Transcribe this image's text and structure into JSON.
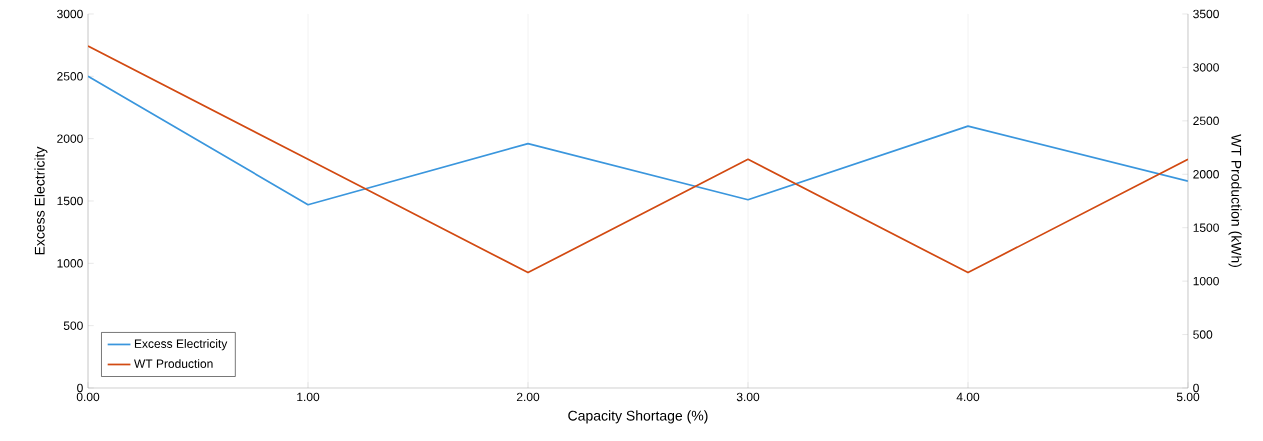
{
  "chart_data": {
    "type": "line",
    "xlabel": "Capacity Shortage (%)",
    "ylabel": "Excess Electricity",
    "y2label": "WT Production (kWh)",
    "x": [
      0,
      1,
      2,
      3,
      4,
      5
    ],
    "series": [
      {
        "name": "Excess Electricity",
        "color": "#3a96dd",
        "values": [
          2500,
          1470,
          1960,
          1510,
          2100,
          1660
        ]
      },
      {
        "name": "WT Production",
        "color": "#d24a12",
        "axis": "y2",
        "values": [
          3200,
          2140,
          1080,
          2140,
          1080,
          2140
        ]
      }
    ],
    "xlim": [
      0,
      5
    ],
    "xticks": [
      {
        "value": 0,
        "label": "0.00"
      },
      {
        "value": 1,
        "label": "1.00"
      },
      {
        "value": 2,
        "label": "2.00"
      },
      {
        "value": 3,
        "label": "3.00"
      },
      {
        "value": 4,
        "label": "4.00"
      },
      {
        "value": 5,
        "label": "5.00"
      }
    ],
    "ylim": [
      0,
      3000
    ],
    "yticks": [
      0,
      500,
      1000,
      1500,
      2000,
      2500,
      3000
    ],
    "y2lim": [
      0,
      3500
    ],
    "y2ticks": [
      0,
      500,
      1000,
      1500,
      2000,
      2500,
      3000,
      3500
    ],
    "grid": "x",
    "legend": "bottom left"
  }
}
